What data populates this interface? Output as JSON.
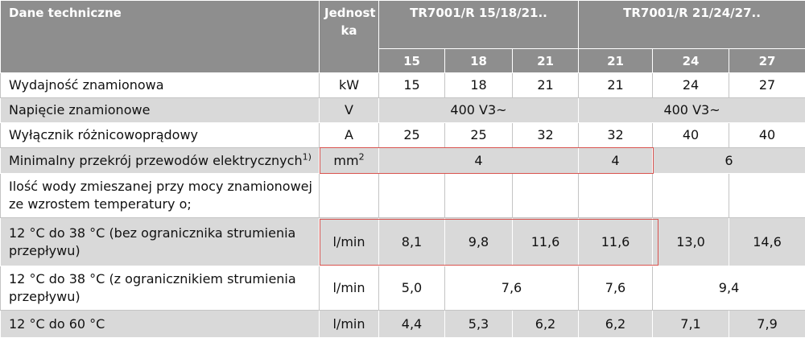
{
  "header": {
    "title": "Dane techniczne",
    "unit_lines": [
      "Jednost",
      "ka"
    ],
    "groups": [
      "TR7001/R 15/18/21..",
      "TR7001/R 21/24/27.."
    ],
    "models": [
      "15",
      "18",
      "21",
      "21",
      "24",
      "27"
    ]
  },
  "rows": [
    {
      "label": "Wydajność znamionowa",
      "unit": "kW",
      "cells": [
        "15",
        "18",
        "21",
        "21",
        "24",
        "27"
      ]
    },
    {
      "label": "Napięcie znamionowe",
      "unit": "V",
      "cells": [
        "400 V3~",
        "400 V3~"
      ]
    },
    {
      "label": "Wyłącznik różnicowoprądowy",
      "unit": "A",
      "cells": [
        "25",
        "25",
        "32",
        "32",
        "40",
        "40"
      ]
    },
    {
      "label": "Minimalny przekrój przewodów elektrycznych",
      "label_sup": "1)",
      "unit": "mm",
      "unit_sup": "2",
      "cells": [
        "4",
        "4",
        "6"
      ]
    },
    {
      "label": "Ilość wody zmieszanej przy mocy znamionowej ze wzrostem temperatury o;"
    },
    {
      "label": "12 °C do 38 °C (bez ogranicznika strumienia przepływu)",
      "unit": "l/min",
      "cells": [
        "8,1",
        "9,8",
        "11,6",
        "11,6",
        "13,0",
        "14,6"
      ]
    },
    {
      "label": "12 °C do 38 °C (z ogranicznikiem strumienia przepływu)",
      "unit": "l/min",
      "cells": [
        "5,0",
        "7,6",
        "7,6",
        "9,4"
      ]
    },
    {
      "label": "12 °C do 60 °C",
      "unit": "l/min",
      "cells": [
        "4,4",
        "5,3",
        "6,2",
        "6,2",
        "7,1",
        "7,9"
      ]
    }
  ]
}
